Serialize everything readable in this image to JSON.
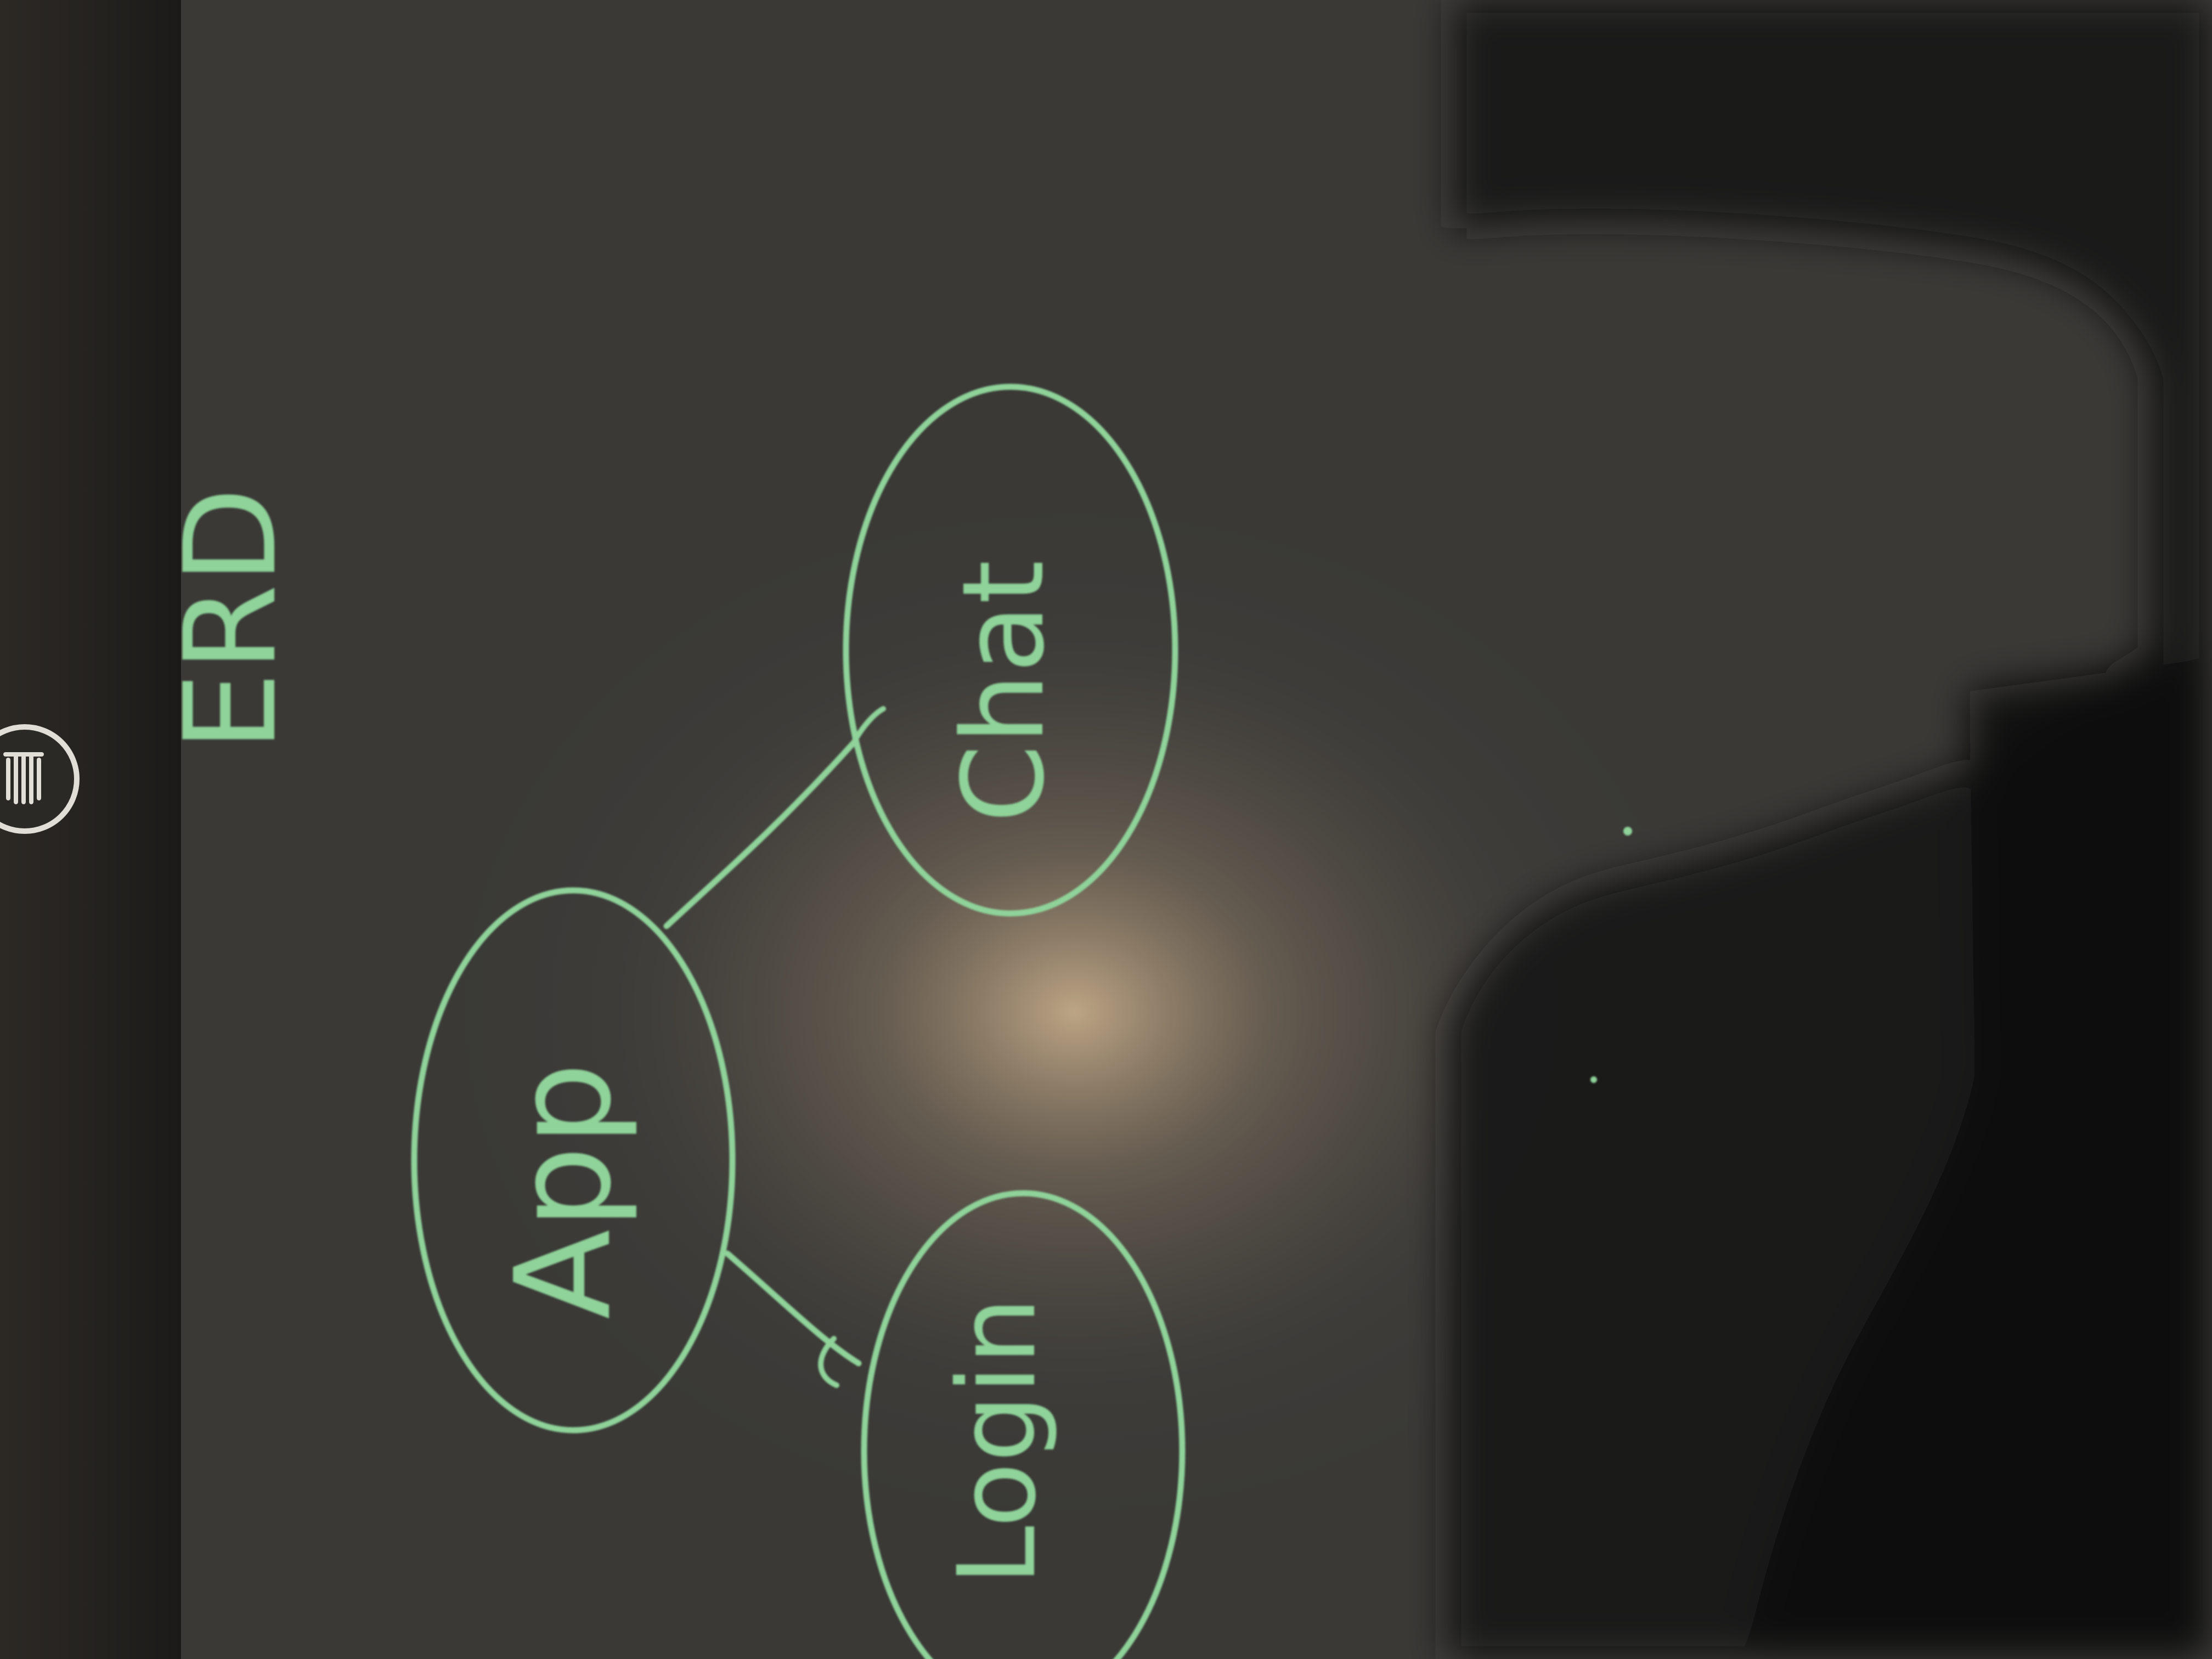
{
  "diagram": {
    "title": "ERD",
    "nodes": [
      {
        "id": "app",
        "label": "App"
      },
      {
        "id": "chat",
        "label": "Chat"
      },
      {
        "id": "login",
        "label": "Login"
      }
    ],
    "edges": [
      {
        "from": "app",
        "to": "chat"
      },
      {
        "from": "app",
        "to": "login"
      }
    ]
  },
  "colors": {
    "ink": "#8fd39a",
    "board": "#3c3b38",
    "frame": "#2a2824",
    "shadow": "#0f1013",
    "glow": "#c9b08a",
    "button_ring": "#d9d6d1"
  },
  "icons": {
    "erase_button": "trash-icon"
  }
}
